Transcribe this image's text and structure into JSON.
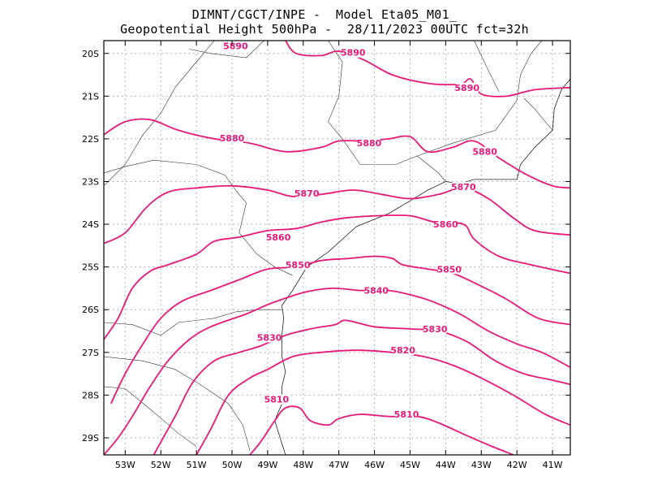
{
  "title": {
    "line1": "DIMNT/CGCT/INPE -  Model Eta05_M01_",
    "line2": "Geopotential Height 500hPa -  28/11/2023 00UTC fct=32h"
  },
  "chart_data": {
    "type": "contour-map",
    "lon_range": [
      -53.6,
      -40.5
    ],
    "lat_range": [
      -29.4,
      -19.7
    ],
    "grid": true,
    "x_ticks": [
      {
        "lon": -53,
        "label": "53W"
      },
      {
        "lon": -52,
        "label": "52W"
      },
      {
        "lon": -51,
        "label": "51W"
      },
      {
        "lon": -50,
        "label": "50W"
      },
      {
        "lon": -49,
        "label": "49W"
      },
      {
        "lon": -48,
        "label": "48W"
      },
      {
        "lon": -47,
        "label": "47W"
      },
      {
        "lon": -46,
        "label": "46W"
      },
      {
        "lon": -45,
        "label": "45W"
      },
      {
        "lon": -44,
        "label": "44W"
      },
      {
        "lon": -43,
        "label": "43W"
      },
      {
        "lon": -42,
        "label": "42W"
      },
      {
        "lon": -41,
        "label": "41W"
      }
    ],
    "y_ticks": [
      {
        "lat": -20,
        "label": "20S"
      },
      {
        "lat": -21,
        "label": "21S"
      },
      {
        "lat": -22,
        "label": "22S"
      },
      {
        "lat": -23,
        "label": "23S"
      },
      {
        "lat": -24,
        "label": "24S"
      },
      {
        "lat": -25,
        "label": "25S"
      },
      {
        "lat": -26,
        "label": "26S"
      },
      {
        "lat": -27,
        "label": "27S"
      },
      {
        "lat": -28,
        "label": "28S"
      },
      {
        "lat": -29,
        "label": "29S"
      }
    ],
    "contours": [
      {
        "value": 5890,
        "label": "5890",
        "color": "#e8187a",
        "points": [
          [
            -48.5,
            -19.7
          ],
          [
            -48.2,
            -20.0
          ],
          [
            -47.5,
            -20.05
          ],
          [
            -47.0,
            -19.95
          ],
          [
            -46.3,
            -20.15
          ],
          [
            -45.5,
            -20.5
          ],
          [
            -44.5,
            -20.7
          ],
          [
            -43.6,
            -20.72
          ],
          [
            -43.3,
            -20.6
          ],
          [
            -43.0,
            -20.95
          ],
          [
            -42.3,
            -21.0
          ],
          [
            -41.5,
            -20.85
          ],
          [
            -40.5,
            -20.8
          ]
        ],
        "labels": [
          {
            "text": "5890",
            "lon": -49.9,
            "lat": -19.82
          },
          {
            "text": "5890",
            "lon": -46.6,
            "lat": -19.98
          },
          {
            "text": "5890",
            "lon": -43.4,
            "lat": -20.8
          }
        ]
      },
      {
        "value": 5880,
        "label": "5880",
        "color": "#e8187a",
        "points": [
          [
            -53.6,
            -21.9
          ],
          [
            -53.0,
            -21.6
          ],
          [
            -52.3,
            -21.55
          ],
          [
            -51.5,
            -21.8
          ],
          [
            -50.5,
            -22.0
          ],
          [
            -49.5,
            -22.1
          ],
          [
            -48.5,
            -22.3
          ],
          [
            -47.5,
            -22.2
          ],
          [
            -47.0,
            -22.05
          ],
          [
            -46.2,
            -22.05
          ],
          [
            -45.6,
            -22.0
          ],
          [
            -45.0,
            -21.95
          ],
          [
            -44.5,
            -22.3
          ],
          [
            -43.8,
            -22.2
          ],
          [
            -43.2,
            -22.05
          ],
          [
            -42.5,
            -22.45
          ],
          [
            -41.7,
            -22.85
          ],
          [
            -41.0,
            -23.1
          ],
          [
            -40.5,
            -23.15
          ]
        ],
        "labels": [
          {
            "text": "5880",
            "lon": -50.0,
            "lat": -21.98
          },
          {
            "text": "5880",
            "lon": -46.15,
            "lat": -22.1
          },
          {
            "text": "5880",
            "lon": -42.9,
            "lat": -22.3
          }
        ]
      },
      {
        "value": 5870,
        "label": "5870",
        "color": "#e8187a",
        "points": [
          [
            -53.6,
            -24.45
          ],
          [
            -53.0,
            -24.2
          ],
          [
            -52.4,
            -23.6
          ],
          [
            -51.8,
            -23.25
          ],
          [
            -51.0,
            -23.15
          ],
          [
            -50.0,
            -23.1
          ],
          [
            -49.0,
            -23.2
          ],
          [
            -48.3,
            -23.35
          ],
          [
            -47.5,
            -23.3
          ],
          [
            -46.6,
            -23.2
          ],
          [
            -45.8,
            -23.3
          ],
          [
            -45.0,
            -23.4
          ],
          [
            -44.2,
            -23.3
          ],
          [
            -43.5,
            -23.15
          ],
          [
            -42.8,
            -23.4
          ],
          [
            -42.1,
            -23.85
          ],
          [
            -41.5,
            -24.15
          ],
          [
            -40.5,
            -24.25
          ]
        ],
        "labels": [
          {
            "text": "5870",
            "lon": -47.9,
            "lat": -23.28
          },
          {
            "text": "5870",
            "lon": -43.5,
            "lat": -23.12
          }
        ]
      },
      {
        "value": 5860,
        "label": "5860",
        "color": "#e8187a",
        "points": [
          [
            -53.6,
            -26.7
          ],
          [
            -53.2,
            -26.2
          ],
          [
            -52.8,
            -25.5
          ],
          [
            -52.3,
            -25.1
          ],
          [
            -51.8,
            -24.95
          ],
          [
            -51.0,
            -24.7
          ],
          [
            -50.5,
            -24.4
          ],
          [
            -49.8,
            -24.3
          ],
          [
            -49.0,
            -24.15
          ],
          [
            -48.2,
            -24.1
          ],
          [
            -47.5,
            -23.95
          ],
          [
            -46.8,
            -23.85
          ],
          [
            -45.9,
            -23.8
          ],
          [
            -45.0,
            -23.8
          ],
          [
            -44.3,
            -23.95
          ],
          [
            -43.5,
            -24.0
          ],
          [
            -43.2,
            -24.35
          ],
          [
            -42.5,
            -24.75
          ],
          [
            -41.6,
            -24.95
          ],
          [
            -40.5,
            -25.15
          ]
        ],
        "labels": [
          {
            "text": "5860",
            "lon": -48.7,
            "lat": -24.3
          },
          {
            "text": "5860",
            "lon": -44.0,
            "lat": -24.0
          }
        ]
      },
      {
        "value": 5850,
        "label": "5850",
        "color": "#e8187a",
        "points": [
          [
            -53.4,
            -28.2
          ],
          [
            -53.0,
            -27.5
          ],
          [
            -52.5,
            -26.8
          ],
          [
            -52.0,
            -26.2
          ],
          [
            -51.4,
            -25.8
          ],
          [
            -50.6,
            -25.55
          ],
          [
            -49.8,
            -25.3
          ],
          [
            -49.0,
            -25.05
          ],
          [
            -48.2,
            -25.0
          ],
          [
            -47.5,
            -24.85
          ],
          [
            -46.7,
            -24.8
          ],
          [
            -46.0,
            -24.75
          ],
          [
            -45.5,
            -24.8
          ],
          [
            -45.2,
            -24.95
          ],
          [
            -44.5,
            -25.05
          ],
          [
            -43.8,
            -25.15
          ],
          [
            -43.0,
            -25.45
          ],
          [
            -42.3,
            -25.75
          ],
          [
            -41.4,
            -26.2
          ],
          [
            -40.5,
            -26.35
          ]
        ],
        "labels": [
          {
            "text": "5850",
            "lon": -48.15,
            "lat": -24.95
          },
          {
            "text": "5850",
            "lon": -43.9,
            "lat": -25.05
          }
        ]
      },
      {
        "value": 5840,
        "label": "5840",
        "color": "#e8187a",
        "points": [
          [
            -53.6,
            -29.4
          ],
          [
            -53.2,
            -29.0
          ],
          [
            -52.8,
            -28.5
          ],
          [
            -52.3,
            -27.8
          ],
          [
            -51.8,
            -27.2
          ],
          [
            -51.2,
            -26.7
          ],
          [
            -50.6,
            -26.4
          ],
          [
            -49.6,
            -26.1
          ],
          [
            -48.9,
            -25.85
          ],
          [
            -48.0,
            -25.6
          ],
          [
            -47.2,
            -25.5
          ],
          [
            -46.4,
            -25.55
          ],
          [
            -45.6,
            -25.55
          ],
          [
            -45.0,
            -25.65
          ],
          [
            -44.4,
            -25.8
          ],
          [
            -43.6,
            -26.1
          ],
          [
            -42.8,
            -26.5
          ],
          [
            -42.0,
            -26.8
          ],
          [
            -41.3,
            -27.0
          ],
          [
            -40.5,
            -27.35
          ]
        ],
        "labels": [
          {
            "text": "5840",
            "lon": -45.95,
            "lat": -25.55
          }
        ]
      },
      {
        "value": 5830,
        "label": "5830",
        "color": "#e8187a",
        "points": [
          [
            -52.2,
            -29.4
          ],
          [
            -51.6,
            -28.5
          ],
          [
            -51.1,
            -27.7
          ],
          [
            -50.5,
            -27.2
          ],
          [
            -49.8,
            -27.0
          ],
          [
            -49.2,
            -26.85
          ],
          [
            -48.5,
            -26.6
          ],
          [
            -47.8,
            -26.45
          ],
          [
            -47.1,
            -26.35
          ],
          [
            -46.8,
            -26.25
          ],
          [
            -46.0,
            -26.4
          ],
          [
            -45.0,
            -26.45
          ],
          [
            -44.2,
            -26.5
          ],
          [
            -43.4,
            -26.75
          ],
          [
            -42.6,
            -27.2
          ],
          [
            -41.8,
            -27.5
          ],
          [
            -41.0,
            -27.65
          ],
          [
            -40.5,
            -27.75
          ]
        ],
        "labels": [
          {
            "text": "5830",
            "lon": -48.95,
            "lat": -26.65
          },
          {
            "text": "5830",
            "lon": -44.3,
            "lat": -26.45
          }
        ]
      },
      {
        "value": 5820,
        "label": "5820",
        "color": "#e8187a",
        "points": [
          [
            -51.0,
            -29.4
          ],
          [
            -50.6,
            -28.8
          ],
          [
            -50.1,
            -28.0
          ],
          [
            -49.5,
            -27.6
          ],
          [
            -49.0,
            -27.4
          ],
          [
            -48.3,
            -27.1
          ],
          [
            -47.5,
            -27.0
          ],
          [
            -46.5,
            -26.95
          ],
          [
            -45.5,
            -27.0
          ],
          [
            -44.6,
            -27.1
          ],
          [
            -43.8,
            -27.3
          ],
          [
            -43.0,
            -27.6
          ],
          [
            -42.1,
            -28.0
          ],
          [
            -41.2,
            -28.45
          ],
          [
            -40.5,
            -28.7
          ]
        ],
        "labels": [
          {
            "text": "5820",
            "lon": -45.2,
            "lat": -26.95
          }
        ]
      },
      {
        "value": 5810,
        "label": "5810",
        "color": "#e8187a",
        "points": [
          [
            -49.5,
            -29.4
          ],
          [
            -49.2,
            -29.1
          ],
          [
            -48.8,
            -28.6
          ],
          [
            -48.5,
            -28.3
          ],
          [
            -48.1,
            -28.3
          ],
          [
            -47.8,
            -28.6
          ],
          [
            -47.3,
            -28.7
          ],
          [
            -47.0,
            -28.55
          ],
          [
            -46.4,
            -28.45
          ],
          [
            -45.6,
            -28.5
          ],
          [
            -44.8,
            -28.5
          ],
          [
            -44.2,
            -28.65
          ],
          [
            -43.4,
            -28.95
          ],
          [
            -42.7,
            -29.2
          ],
          [
            -42.1,
            -29.4
          ]
        ],
        "labels": [
          {
            "text": "5810",
            "lon": -48.75,
            "lat": -28.1
          },
          {
            "text": "5810",
            "lon": -45.1,
            "lat": -28.45
          }
        ]
      }
    ],
    "coastline": [
      [
        -48.5,
        -29.4
      ],
      [
        -48.8,
        -28.6
      ],
      [
        -48.6,
        -28.2
      ],
      [
        -48.6,
        -27.8
      ],
      [
        -48.5,
        -27.45
      ],
      [
        -48.6,
        -27.1
      ],
      [
        -48.6,
        -26.6
      ],
      [
        -48.55,
        -26.2
      ],
      [
        -48.6,
        -25.9
      ],
      [
        -48.3,
        -25.55
      ],
      [
        -47.9,
        -25.0
      ],
      [
        -47.3,
        -24.65
      ],
      [
        -46.5,
        -24.05
      ],
      [
        -45.6,
        -23.75
      ],
      [
        -45.0,
        -23.45
      ],
      [
        -44.5,
        -23.2
      ],
      [
        -44.0,
        -23.0
      ],
      [
        -43.6,
        -23.05
      ],
      [
        -43.2,
        -22.95
      ],
      [
        -42.4,
        -22.95
      ],
      [
        -42.0,
        -22.95
      ],
      [
        -41.9,
        -22.6
      ],
      [
        -41.5,
        -22.2
      ],
      [
        -41.0,
        -21.8
      ],
      [
        -40.95,
        -21.3
      ],
      [
        -40.75,
        -20.85
      ],
      [
        -40.5,
        -20.6
      ]
    ],
    "borders": [
      [
        [
          -50.5,
          -19.7
        ],
        [
          -51.1,
          -20.3
        ],
        [
          -51.6,
          -20.8
        ],
        [
          -52.0,
          -21.4
        ],
        [
          -52.5,
          -21.9
        ],
        [
          -53.0,
          -22.6
        ],
        [
          -53.6,
          -23.1
        ]
      ],
      [
        [
          -53.6,
          -22.8
        ],
        [
          -53.0,
          -22.65
        ],
        [
          -52.2,
          -22.5
        ],
        [
          -51.0,
          -22.6
        ],
        [
          -50.2,
          -22.85
        ],
        [
          -49.9,
          -23.2
        ]
      ],
      [
        [
          -53.6,
          -26.3
        ],
        [
          -52.8,
          -26.35
        ],
        [
          -52.0,
          -26.6
        ],
        [
          -51.5,
          -26.3
        ],
        [
          -50.5,
          -26.2
        ],
        [
          -49.9,
          -26.05
        ],
        [
          -49.3,
          -26.0
        ],
        [
          -48.6,
          -26.0
        ]
      ],
      [
        [
          -49.9,
          -23.2
        ],
        [
          -49.6,
          -23.5
        ],
        [
          -49.8,
          -24.2
        ],
        [
          -49.3,
          -24.7
        ],
        [
          -48.8,
          -25.0
        ],
        [
          -48.3,
          -25.2
        ]
      ],
      [
        [
          -53.6,
          -27.1
        ],
        [
          -52.5,
          -27.2
        ],
        [
          -51.6,
          -27.4
        ],
        [
          -50.9,
          -27.75
        ],
        [
          -50.1,
          -28.2
        ],
        [
          -49.7,
          -28.7
        ],
        [
          -49.5,
          -29.3
        ]
      ],
      [
        [
          -53.6,
          -27.8
        ],
        [
          -53.0,
          -27.85
        ],
        [
          -52.2,
          -28.4
        ],
        [
          -51.5,
          -28.9
        ],
        [
          -51.0,
          -29.2
        ]
      ],
      [
        [
          -47.3,
          -19.7
        ],
        [
          -46.9,
          -20.2
        ],
        [
          -47.0,
          -21.0
        ],
        [
          -47.3,
          -21.6
        ],
        [
          -46.9,
          -22.0
        ],
        [
          -46.4,
          -22.6
        ],
        [
          -45.4,
          -22.6
        ],
        [
          -44.8,
          -22.4
        ],
        [
          -44.2,
          -22.8
        ],
        [
          -44.0,
          -23.0
        ]
      ],
      [
        [
          -44.8,
          -22.4
        ],
        [
          -43.8,
          -22.1
        ],
        [
          -42.6,
          -21.8
        ],
        [
          -42.0,
          -21.1
        ],
        [
          -41.9,
          -20.5
        ],
        [
          -41.6,
          -20.0
        ],
        [
          -41.3,
          -19.7
        ]
      ],
      [
        [
          -41.0,
          -21.8
        ],
        [
          -41.5,
          -21.3
        ],
        [
          -41.8,
          -21.05
        ]
      ],
      [
        [
          -49.1,
          -19.7
        ],
        [
          -49.6,
          -20.1
        ],
        [
          -50.6,
          -20.0
        ],
        [
          -51.2,
          -19.9
        ]
      ],
      [
        [
          -43.2,
          -19.7
        ],
        [
          -42.8,
          -20.4
        ],
        [
          -42.5,
          -20.9
        ]
      ]
    ]
  }
}
